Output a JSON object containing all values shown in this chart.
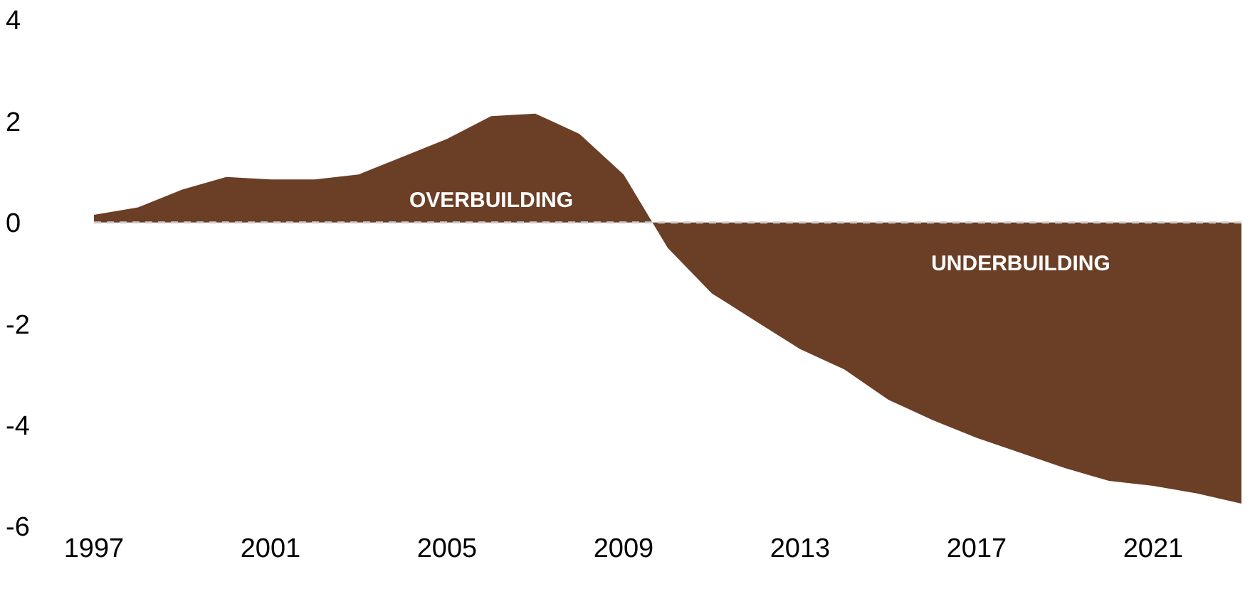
{
  "chart_data": {
    "type": "area",
    "x": [
      1997,
      1998,
      1999,
      2000,
      2001,
      2002,
      2003,
      2004,
      2005,
      2006,
      2007,
      2008,
      2009,
      2010,
      2011,
      2012,
      2013,
      2014,
      2015,
      2016,
      2017,
      2018,
      2019,
      2020,
      2021,
      2022,
      2023
    ],
    "series": [
      {
        "color": "#6b3e26",
        "values": [
          0.15,
          0.3,
          0.65,
          0.9,
          0.85,
          0.85,
          0.95,
          1.3,
          1.65,
          2.1,
          2.15,
          1.75,
          0.95,
          -0.5,
          -1.4,
          -1.95,
          -2.5,
          -2.9,
          -3.5,
          -3.9,
          -4.25,
          -4.55,
          -4.85,
          -5.1,
          -5.2,
          -5.35,
          -5.55
        ]
      }
    ],
    "xlim": [
      1997,
      2023
    ],
    "xticks": [
      1997,
      2001,
      2005,
      2009,
      2013,
      2017,
      2021
    ],
    "ylim": [
      -6,
      4
    ],
    "yticks": [
      -6,
      -4,
      -2,
      0,
      2,
      4
    ],
    "ref_lines": [
      {
        "axis": "y",
        "value": 0,
        "color": "#cccccc",
        "line_style": "dashed"
      }
    ],
    "annotations": [
      "OVERBUILDING",
      "UNDERBUILDING"
    ],
    "grid": false,
    "legend": false
  }
}
